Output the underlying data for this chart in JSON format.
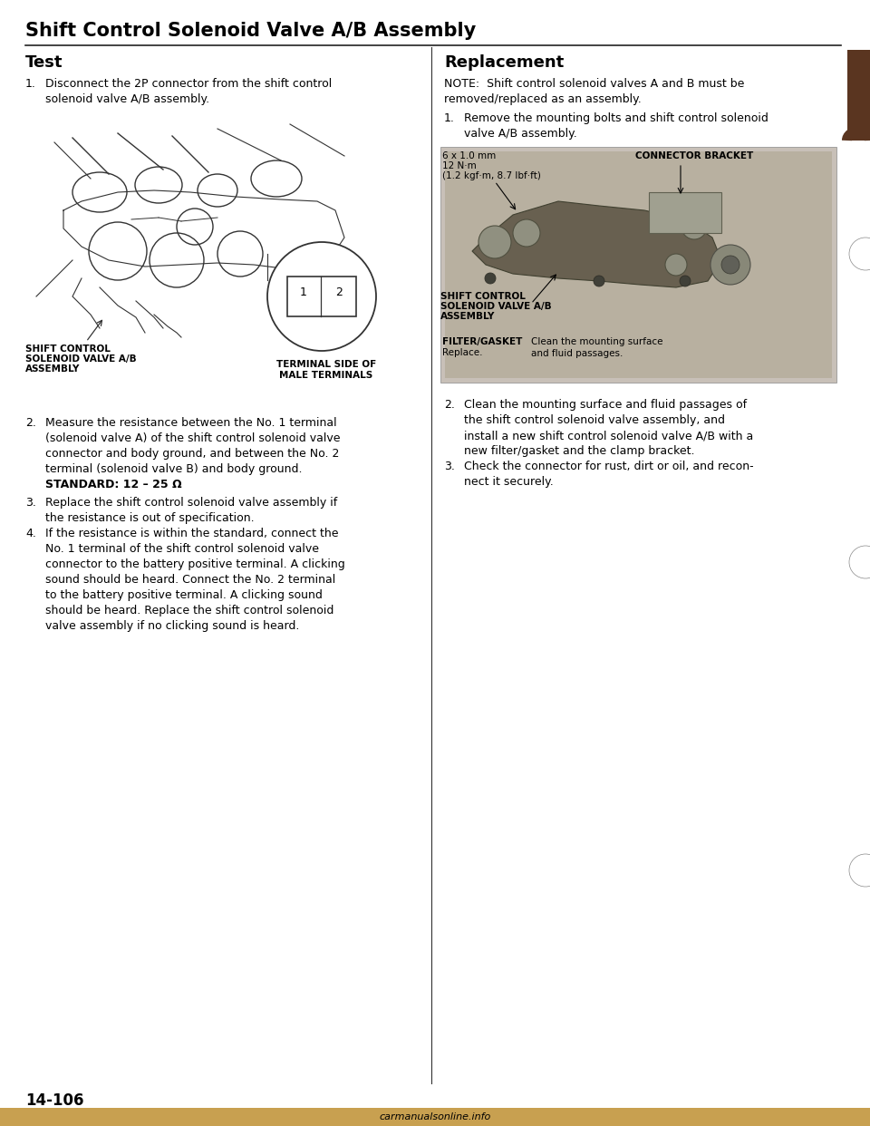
{
  "title": "Shift Control Solenoid Valve A/B Assembly",
  "page_number": "14-106",
  "bg_color": "#ffffff",
  "section_left": "Test",
  "section_right": "Replacement",
  "item1_left": "Disconnect the 2P connector from the shift control\nsolenoid valve A/B assembly.",
  "item2_left_intro": "Measure the resistance between the No. 1 terminal\n(solenoid valve A) of the shift control solenoid valve\nconnector and body ground, and between the No. 2\nterminal (solenoid valve B) and body ground.",
  "standard_label": "STANDARD: 12 – 25 Ω",
  "item3_left": "Replace the shift control solenoid valve assembly if\nthe resistance is out of specification.",
  "item4_left": "If the resistance is within the standard, connect the\nNo. 1 terminal of the shift control solenoid valve\nconnector to the battery positive terminal. A clicking\nsound should be heard. Connect the No. 2 terminal\nto the battery positive terminal. A clicking sound\nshould be heard. Replace the shift control solenoid\nvalve assembly if no clicking sound is heard.",
  "left_label1": "TERMINAL SIDE OF\nMALE TERMINALS",
  "left_label2_line1": "SHIFT CONTROL",
  "left_label2_line2": "SOLENOID VALVE A/B",
  "left_label2_line3": "ASSEMBLY",
  "right_note": "NOTE:  Shift control solenoid valves A and B must be\nremoved/replaced as an assembly.",
  "right_item1": "Remove the mounting bolts and shift control solenoid\nvalve A/B assembly.",
  "right_bolt_spec": "6 x 1.0 mm\n12 N·m\n(1.2 kgf·m, 8.7 lbf·ft)",
  "right_connector_bracket": "CONNECTOR BRACKET",
  "right_assembly_label1": "SHIFT CONTROL",
  "right_assembly_label2": "SOLENOID VALVE A/B",
  "right_assembly_label3": "ASSEMBLY",
  "right_filter_gasket": "FILTER/GASKET",
  "right_replace": "Replace.",
  "right_clean": "Clean the mounting surface\nand fluid passages.",
  "right_item2": "Clean the mounting surface and fluid passages of\nthe shift control solenoid valve assembly, and\ninstall a new shift control solenoid valve A/B with a\nnew filter/gasket and the clamp bracket.",
  "right_item3": "Check the connector for rust, dirt or oil, and recon-\nnect it securely.",
  "watermark": "carmanualsonline.info",
  "tab_color": "#5a3520",
  "line_color": "#222222",
  "diagram_line_color": "#333333"
}
